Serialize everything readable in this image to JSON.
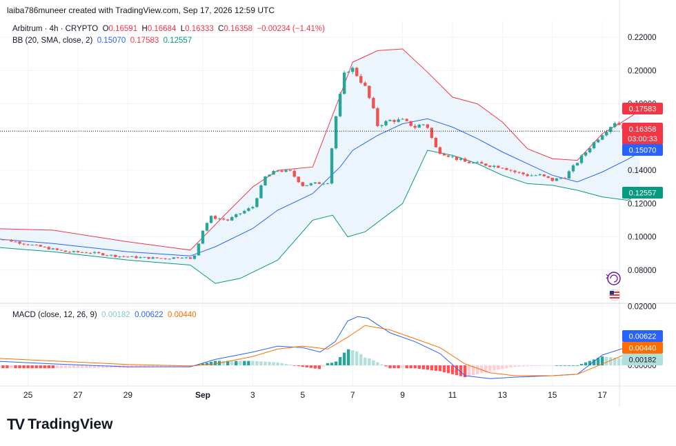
{
  "header": {
    "credit": "laiba786muneer created with TradingView.com, Sep 17, 2026 12:59 UTC"
  },
  "legend": {
    "symbol": "Arbitrum · 4h · CRYPTO",
    "o_label": "O",
    "o": "0.16591",
    "h_label": "H",
    "h": "0.16684",
    "l_label": "L",
    "l": "0.16333",
    "c_label": "C",
    "c": "0.16358",
    "change": "−0.00234 (−1.41%)",
    "bb_name": "BB (20, SMA, close, 2)",
    "bb_basis": "0.15070",
    "bb_upper": "0.17583",
    "bb_lower": "0.12557",
    "macd_name": "MACD (close, 12, 26, 9)",
    "macd_hist": "0.00182",
    "macd_line": "0.00622",
    "macd_signal": "0.00440"
  },
  "price_badges": {
    "upper": "0.17583",
    "last": "0.16358",
    "countdown": "03:00:33",
    "basis": "0.15070",
    "lower": "0.12557"
  },
  "macd_badges": {
    "macd": "0.00622",
    "signal": "0.00440",
    "hist": "0.00182"
  },
  "brand": {
    "name": "TradingView",
    "logo_text": "TV"
  },
  "colors": {
    "up": "#26a69a",
    "down": "#ef5350",
    "basis": "#2962ff",
    "upper": "#f23645",
    "lower": "#089981",
    "macd": "#2962ff",
    "signal": "#ff6d00",
    "hist_up_strong": "#26a69a",
    "hist_up_weak": "#b2dfdb",
    "hist_down_strong": "#ff5252",
    "hist_down_weak": "#ffcdd2",
    "band_fill": "#eaf3fb"
  },
  "chart_data": {
    "type": "candlestick",
    "price_axis": {
      "ylim": [
        0.06,
        0.23
      ],
      "ticks": [
        "0.08000",
        "0.10000",
        "0.12000",
        "0.14000",
        "0.16000",
        "0.18000",
        "0.20000",
        "0.22000"
      ]
    },
    "macd_axis": {
      "ylim": [
        -0.007,
        0.021
      ],
      "ticks": [
        "0.00000",
        "0.02000"
      ]
    },
    "x_ticks": [
      "25",
      "27",
      "29",
      "Sep",
      "3",
      "5",
      "7",
      "9",
      "11",
      "13",
      "15",
      "17"
    ],
    "x_tick_days": [
      -7,
      -5,
      -3,
      0,
      2,
      4,
      6,
      8,
      10,
      12,
      14,
      16
    ],
    "close_path": [
      [
        -8.5,
        0.1
      ],
      [
        -7.5,
        0.097
      ],
      [
        -6.5,
        0.094
      ],
      [
        -5.5,
        0.091
      ],
      [
        -4.5,
        0.0905
      ],
      [
        -3.5,
        0.0885
      ],
      [
        -2.5,
        0.0875
      ],
      [
        -1.5,
        0.087
      ],
      [
        -0.8,
        0.088
      ],
      [
        -0.4,
        0.086
      ],
      [
        0,
        0.104
      ],
      [
        0.3,
        0.112
      ],
      [
        1,
        0.11
      ],
      [
        1.6,
        0.115
      ],
      [
        2,
        0.118
      ],
      [
        2.5,
        0.136
      ],
      [
        3,
        0.14
      ],
      [
        3.5,
        0.139
      ],
      [
        4,
        0.131
      ],
      [
        4.5,
        0.132
      ],
      [
        5,
        0.133
      ],
      [
        5.3,
        0.17
      ],
      [
        5.7,
        0.2
      ],
      [
        6,
        0.201
      ],
      [
        6.5,
        0.19
      ],
      [
        6.8,
        0.178
      ],
      [
        7,
        0.167
      ],
      [
        7.5,
        0.17
      ],
      [
        8,
        0.17
      ],
      [
        8.5,
        0.166
      ],
      [
        8.8,
        0.168
      ],
      [
        9,
        0.166
      ],
      [
        9.3,
        0.154
      ],
      [
        9.5,
        0.151
      ],
      [
        10,
        0.148
      ],
      [
        10.5,
        0.145
      ],
      [
        11,
        0.144
      ],
      [
        11.5,
        0.143
      ],
      [
        12,
        0.142
      ],
      [
        12.5,
        0.139
      ],
      [
        13,
        0.137
      ],
      [
        13.5,
        0.137
      ],
      [
        14,
        0.134
      ],
      [
        14.5,
        0.136
      ],
      [
        15,
        0.145
      ],
      [
        15.5,
        0.154
      ],
      [
        16,
        0.162
      ],
      [
        16.5,
        0.169
      ],
      [
        17,
        0.1645
      ],
      [
        17.5,
        0.16358
      ]
    ],
    "bb_basis": [
      [
        -8.5,
        0.099
      ],
      [
        -6,
        0.096
      ],
      [
        -3,
        0.091
      ],
      [
        -0.5,
        0.0885
      ],
      [
        0.5,
        0.094
      ],
      [
        2,
        0.105
      ],
      [
        3,
        0.116
      ],
      [
        4.4,
        0.126
      ],
      [
        5.5,
        0.142
      ],
      [
        6,
        0.152
      ],
      [
        7,
        0.161
      ],
      [
        8,
        0.168
      ],
      [
        9,
        0.171
      ],
      [
        10,
        0.166
      ],
      [
        11,
        0.159
      ],
      [
        12,
        0.151
      ],
      [
        13,
        0.144
      ],
      [
        14,
        0.137
      ],
      [
        15,
        0.133
      ],
      [
        16,
        0.139
      ],
      [
        17,
        0.1465
      ],
      [
        17.5,
        0.1507
      ]
    ],
    "bb_upper": [
      [
        -8.5,
        0.105
      ],
      [
        -6,
        0.104
      ],
      [
        -3,
        0.097
      ],
      [
        -0.5,
        0.092
      ],
      [
        1,
        0.115
      ],
      [
        2,
        0.13
      ],
      [
        3,
        0.14
      ],
      [
        4.4,
        0.142
      ],
      [
        5.5,
        0.185
      ],
      [
        6,
        0.205
      ],
      [
        7,
        0.212
      ],
      [
        8,
        0.213
      ],
      [
        9,
        0.199
      ],
      [
        10,
        0.184
      ],
      [
        11,
        0.18
      ],
      [
        12,
        0.169
      ],
      [
        13,
        0.153
      ],
      [
        14,
        0.147
      ],
      [
        15,
        0.146
      ],
      [
        16,
        0.162
      ],
      [
        17,
        0.171
      ],
      [
        17.5,
        0.1758
      ]
    ],
    "bb_lower": [
      [
        -8.5,
        0.094
      ],
      [
        -6,
        0.091
      ],
      [
        -3,
        0.086
      ],
      [
        -0.5,
        0.083
      ],
      [
        0.5,
        0.072
      ],
      [
        1.5,
        0.075
      ],
      [
        3,
        0.086
      ],
      [
        4.4,
        0.11
      ],
      [
        5.2,
        0.113
      ],
      [
        5.8,
        0.1
      ],
      [
        6.5,
        0.103
      ],
      [
        8,
        0.12
      ],
      [
        9,
        0.152
      ],
      [
        10,
        0.149
      ],
      [
        11,
        0.144
      ],
      [
        12,
        0.137
      ],
      [
        13,
        0.132
      ],
      [
        14,
        0.131
      ],
      [
        15,
        0.128
      ],
      [
        16,
        0.124
      ],
      [
        17,
        0.122
      ],
      [
        17.5,
        0.1256
      ]
    ],
    "macd_line": [
      [
        -8.5,
        0.0015
      ],
      [
        -6,
        0.0005
      ],
      [
        -3,
        -0.0005
      ],
      [
        -0.5,
        -0.0005
      ],
      [
        0.5,
        0.002
      ],
      [
        2,
        0.0045
      ],
      [
        3,
        0.0065
      ],
      [
        4,
        0.006
      ],
      [
        4.7,
        0.0045
      ],
      [
        5.3,
        0.008
      ],
      [
        5.8,
        0.015
      ],
      [
        6.2,
        0.0165
      ],
      [
        6.6,
        0.016
      ],
      [
        7.5,
        0.011
      ],
      [
        8.5,
        0.008
      ],
      [
        9.5,
        0.004
      ],
      [
        10.5,
        -0.0035
      ],
      [
        11.5,
        -0.0045
      ],
      [
        12.5,
        -0.004
      ],
      [
        14,
        -0.0035
      ],
      [
        15,
        -0.003
      ],
      [
        16,
        0.0035
      ],
      [
        17,
        0.0062
      ],
      [
        17.5,
        0.0062
      ]
    ],
    "macd_signal": [
      [
        -8.5,
        0.0025
      ],
      [
        -6,
        0.0015
      ],
      [
        -3,
        0.0003
      ],
      [
        -0.5,
        -0.0002
      ],
      [
        0.5,
        0.0005
      ],
      [
        2,
        0.003
      ],
      [
        3,
        0.0055
      ],
      [
        4,
        0.0065
      ],
      [
        5,
        0.0055
      ],
      [
        5.8,
        0.0095
      ],
      [
        6.5,
        0.0135
      ],
      [
        7.5,
        0.012
      ],
      [
        8.5,
        0.009
      ],
      [
        9.5,
        0.006
      ],
      [
        10.5,
        0.0005
      ],
      [
        11.5,
        -0.0025
      ],
      [
        12.5,
        -0.0035
      ],
      [
        14,
        -0.0035
      ],
      [
        15,
        -0.003
      ],
      [
        16,
        0.0005
      ],
      [
        17,
        0.004
      ],
      [
        17.5,
        0.0044
      ]
    ],
    "last": {
      "close": 0.16358,
      "open": 0.16591,
      "high": 0.16684,
      "low": 0.16333
    }
  }
}
